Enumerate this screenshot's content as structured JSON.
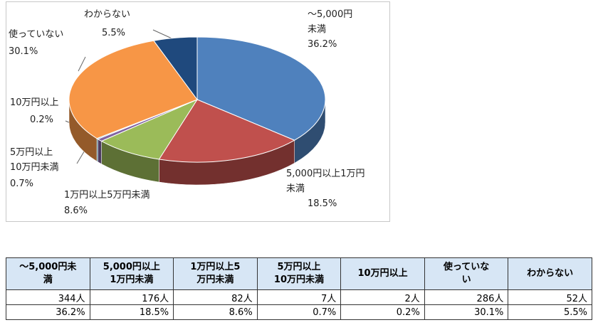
{
  "chart_data": {
    "type": "pie",
    "categories": [
      "～5,000円\n未満",
      "5,000円以上1万円\n未満",
      "1万円以上5万円未満",
      "5万円以上\n10万円未満",
      "10万円以上",
      "使っていない",
      "わからない"
    ],
    "values": [
      36.2,
      18.5,
      8.6,
      0.7,
      0.2,
      30.1,
      5.5
    ],
    "value_labels": [
      "36.2%",
      "18.5%",
      "8.6%",
      "0.7%",
      "0.2%",
      "30.1%",
      "5.5%"
    ],
    "colors": [
      "#4f81bd",
      "#c0504d",
      "#9bbb59",
      "#8064a2",
      "#4bacc6",
      "#f79646",
      "#1f497d"
    ]
  },
  "table": {
    "header": [
      "～5,000円未\n満",
      "5,000円以上\n1万円未満",
      "1万円以上5\n万円未満",
      "5万円以上\n10万円未満",
      "10万円以上",
      "使っていな\nい",
      "わからない"
    ],
    "rows": [
      [
        "344人",
        "176人",
        "82人",
        "7人",
        "2人",
        "286人",
        "52人"
      ],
      [
        "36.2%",
        "18.5%",
        "8.6%",
        "0.7%",
        "0.2%",
        "30.1%",
        "5.5%"
      ]
    ]
  }
}
